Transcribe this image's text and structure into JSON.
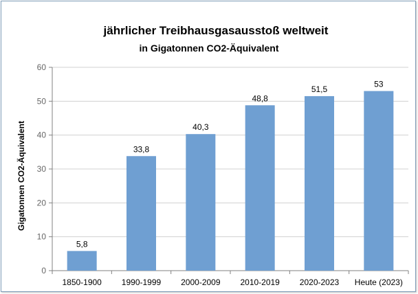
{
  "colors": {
    "bar": "#6f9fd2",
    "grid": "#d0d0d0",
    "axis": "#808080",
    "frame": "#7f9db9"
  },
  "chart_data": {
    "type": "bar",
    "title": "jährlicher Treibhausgasausstoß weltweit",
    "subtitle": "in Gigatonnen CO2-Äquivalent",
    "xlabel": "",
    "ylabel": "Gigatonnen CO2-Äquivalent",
    "categories": [
      "1850-1900",
      "1990-1999",
      "2000-2009",
      "2010-2019",
      "2020-2023",
      "Heute (2023)"
    ],
    "values": [
      5.8,
      33.8,
      40.3,
      48.8,
      51.5,
      53
    ],
    "data_labels": [
      "5,8",
      "33,8",
      "40,3",
      "48,8",
      "51,5",
      "53"
    ],
    "ylim": [
      0,
      60
    ],
    "yticks": [
      0,
      10,
      20,
      30,
      40,
      50,
      60
    ],
    "grid": true,
    "legend": "none"
  }
}
